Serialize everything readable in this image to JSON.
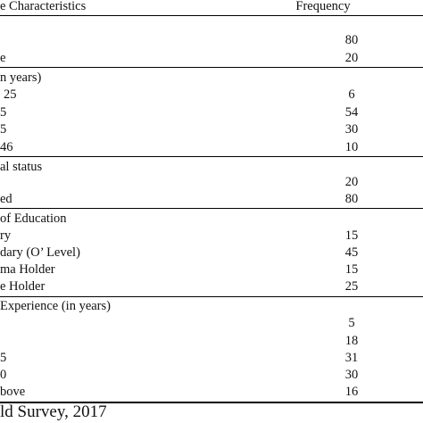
{
  "header": {
    "characteristics": "e Characteristics",
    "frequency": "Frequency"
  },
  "rows": [
    {
      "label": "",
      "freq": "80"
    },
    {
      "label": "e",
      "freq": "20"
    },
    {
      "label": "n years)",
      "freq": ""
    },
    {
      "label": "25",
      "freq": "6"
    },
    {
      "label": "5",
      "freq": "54"
    },
    {
      "label": "5",
      "freq": "30"
    },
    {
      "label": "46",
      "freq": "10"
    },
    {
      "label": "al status",
      "freq": ""
    },
    {
      "label": "",
      "freq": "20"
    },
    {
      "label": "ed",
      "freq": "80"
    },
    {
      "label": "of Education",
      "freq": ""
    },
    {
      "label": "ry",
      "freq": "15"
    },
    {
      "label": "dary (O’ Level)",
      "freq": "45"
    },
    {
      "label": "ma Holder",
      "freq": "15"
    },
    {
      "label": "e Holder",
      "freq": "25"
    },
    {
      "label": "Experience (in years)",
      "freq": ""
    },
    {
      "label": "",
      "freq": "5"
    },
    {
      "label": "",
      "freq": "18"
    },
    {
      "label": "5",
      "freq": "31"
    },
    {
      "label": "0",
      "freq": "30"
    },
    {
      "label": "bove",
      "freq": "16"
    }
  ],
  "caption": "ld Survey, 2017"
}
